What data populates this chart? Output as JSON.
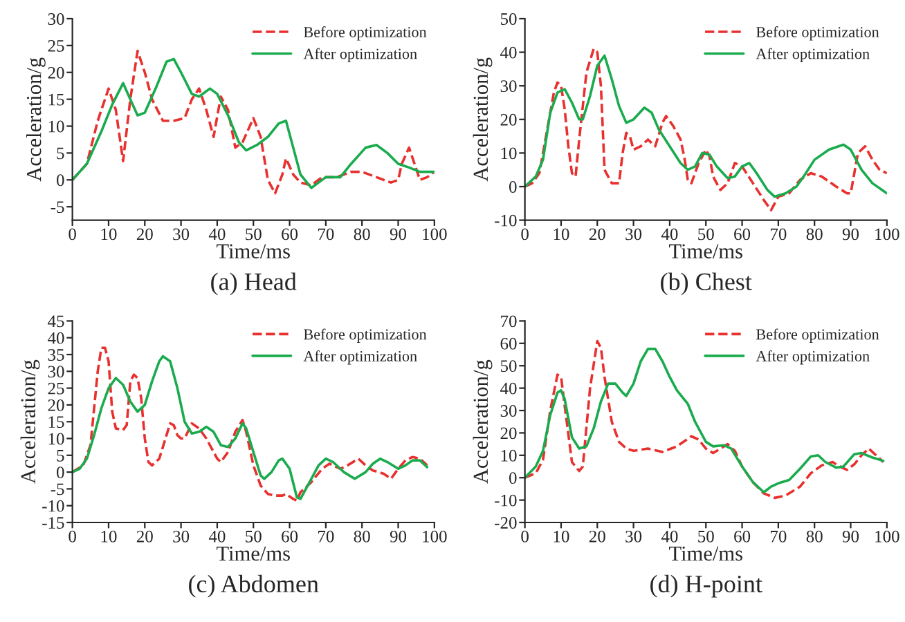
{
  "chart_data": [
    {
      "type": "line",
      "title": "(a) Head",
      "xlabel": "Time/ms",
      "ylabel": "Acceleration/g",
      "xlim": [
        0,
        100
      ],
      "ylim": [
        -7.5,
        30
      ],
      "xticks": [
        0,
        10,
        20,
        30,
        40,
        50,
        60,
        70,
        80,
        90,
        100
      ],
      "yticks": [
        -5,
        0,
        5,
        10,
        15,
        20,
        25,
        30
      ],
      "grid": false,
      "legend": "top right",
      "series": [
        {
          "name": "Before optimization",
          "color": "#e8312f",
          "line_style": "dashed",
          "x": [
            0,
            4,
            7,
            10,
            12,
            14,
            16,
            18,
            20,
            22,
            25,
            28,
            31,
            33,
            35,
            37,
            39,
            41,
            43,
            45,
            47,
            50,
            52,
            54,
            56,
            58,
            59,
            61,
            63,
            66,
            69,
            73,
            77,
            80,
            84,
            88,
            90,
            91,
            93,
            95,
            96,
            98,
            100
          ],
          "values": [
            0,
            3,
            11,
            17,
            13,
            3.5,
            15,
            24,
            20,
            15,
            11,
            11,
            11.5,
            15,
            17,
            13,
            8,
            15.5,
            13,
            6,
            7,
            11.5,
            8,
            0,
            -2.5,
            1,
            4,
            1,
            -0.5,
            -1,
            0.5,
            0.5,
            1.5,
            1.5,
            0.5,
            -0.5,
            0,
            3,
            6,
            2,
            0,
            0.5,
            1.5
          ]
        },
        {
          "name": "After optimization",
          "color": "#1aab4e",
          "line_style": "solid",
          "x": [
            0,
            4,
            8,
            11,
            14,
            16,
            18,
            20,
            23,
            26,
            28,
            30,
            33,
            35,
            38,
            40,
            43,
            46,
            48,
            51,
            54,
            57,
            59,
            61,
            63,
            66,
            68,
            70,
            74,
            77,
            81,
            84,
            87,
            90,
            93,
            96,
            100
          ],
          "values": [
            0,
            3,
            9,
            14,
            18,
            15,
            12,
            12.5,
            17,
            22,
            22.5,
            20,
            16,
            15.5,
            17,
            16,
            12,
            7,
            5.5,
            6.5,
            8,
            10.5,
            11,
            6,
            1,
            -1.5,
            -0.5,
            0.5,
            0.5,
            3,
            6,
            6.5,
            5,
            3,
            2.3,
            1.5,
            1.5
          ]
        }
      ]
    },
    {
      "type": "line",
      "title": "(b) Chest",
      "xlabel": "Time/ms",
      "ylabel": "Acceleration/g",
      "xlim": [
        0,
        100
      ],
      "ylim": [
        -10,
        50
      ],
      "xticks": [
        0,
        10,
        20,
        30,
        40,
        50,
        60,
        70,
        80,
        90,
        100
      ],
      "yticks": [
        -10,
        0,
        10,
        20,
        30,
        40,
        50
      ],
      "grid": false,
      "legend": "top right",
      "series": [
        {
          "name": "Before optimization",
          "color": "#e8312f",
          "line_style": "dashed",
          "x": [
            0,
            2,
            4,
            6,
            8,
            9,
            10,
            11,
            12,
            13,
            14,
            15,
            17,
            19,
            20,
            21,
            22,
            24,
            26,
            27,
            28,
            29,
            30,
            32,
            34,
            36,
            38,
            39,
            41,
            43,
            44,
            45,
            46,
            48,
            50,
            51,
            52,
            54,
            56,
            58,
            60,
            63,
            66,
            68,
            70,
            73,
            76,
            79,
            82,
            86,
            89,
            90,
            91,
            92,
            94,
            96,
            98,
            100
          ],
          "values": [
            0,
            1,
            4,
            16,
            28,
            31,
            30,
            23,
            12,
            4,
            3,
            14,
            34,
            41,
            40,
            30,
            5,
            1,
            1,
            10,
            16,
            15,
            11,
            12,
            14,
            12,
            19,
            21,
            18,
            14,
            9,
            2,
            1,
            7,
            11,
            9,
            3,
            -1,
            1,
            7,
            6,
            1,
            -4,
            -7,
            -3,
            -2,
            2,
            4,
            3,
            0,
            -2,
            -2,
            4,
            10,
            12,
            8,
            5,
            4
          ]
        },
        {
          "name": "After optimization",
          "color": "#1aab4e",
          "line_style": "solid",
          "x": [
            0,
            3,
            5,
            7,
            9,
            11,
            13,
            15,
            16,
            18,
            20,
            22,
            24,
            26,
            28,
            30,
            33,
            35,
            37,
            40,
            43,
            45,
            47,
            49,
            51,
            53,
            56,
            58,
            60,
            62,
            64,
            67,
            69,
            72,
            75,
            77,
            80,
            84,
            88,
            90,
            93,
            96,
            100
          ],
          "values": [
            0,
            3,
            8,
            22,
            28,
            29,
            25,
            20,
            20,
            27,
            36,
            39,
            32,
            24,
            19,
            20,
            23.5,
            22,
            17,
            12,
            7,
            5,
            6,
            10,
            9.5,
            6,
            2.5,
            3,
            6,
            7,
            4,
            -1,
            -3,
            -2,
            0,
            3,
            8,
            11,
            12.5,
            11,
            5,
            1,
            -2
          ]
        }
      ]
    },
    {
      "type": "line",
      "title": "(c) Abdomen",
      "xlabel": "Time/ms",
      "ylabel": "Acceleration/g",
      "xlim": [
        0,
        100
      ],
      "ylim": [
        -15,
        45
      ],
      "xticks": [
        0,
        10,
        20,
        30,
        40,
        50,
        60,
        70,
        80,
        90,
        100
      ],
      "yticks": [
        -15,
        -10,
        -5,
        0,
        5,
        10,
        15,
        20,
        25,
        30,
        35,
        40,
        45
      ],
      "grid": false,
      "legend": "top right",
      "series": [
        {
          "name": "Before optimization",
          "color": "#e8312f",
          "line_style": "dashed",
          "x": [
            0,
            3,
            5,
            7,
            8,
            9,
            10,
            11,
            12,
            14,
            15,
            16,
            17,
            18,
            19,
            20,
            21,
            22,
            24,
            26,
            27,
            28,
            29,
            30,
            31,
            33,
            35,
            37,
            40,
            41,
            43,
            45,
            47,
            48,
            50,
            52,
            54,
            56,
            58,
            59,
            61,
            62,
            63,
            66,
            69,
            71,
            74,
            76,
            79,
            81,
            83,
            86,
            88,
            90,
            92,
            94,
            96,
            98
          ],
          "values": [
            0,
            2,
            8,
            30,
            37,
            37,
            33,
            18,
            13,
            12.5,
            14,
            27,
            29,
            28,
            22,
            10,
            3,
            2,
            4,
            11,
            14.5,
            14,
            11,
            10,
            10,
            14.5,
            13,
            10,
            4,
            3,
            6,
            12,
            15.5,
            12,
            2,
            -4,
            -6.5,
            -7,
            -7,
            -6.5,
            -8,
            -8.5,
            -6,
            -3,
            1,
            2.5,
            1,
            2,
            4,
            2,
            0.5,
            -0.5,
            -2,
            1,
            3.5,
            4.5,
            4,
            2
          ]
        },
        {
          "name": "After optimization",
          "color": "#1aab4e",
          "line_style": "solid",
          "x": [
            0,
            2,
            4,
            6,
            8,
            10,
            12,
            14,
            16,
            18,
            20,
            22,
            24,
            25,
            27,
            29,
            31,
            33,
            35,
            37,
            39,
            41,
            43,
            45,
            47,
            48,
            50,
            52,
            53,
            55,
            57,
            58,
            60,
            62,
            63,
            65,
            68,
            70,
            72,
            75,
            78,
            81,
            83,
            85,
            87,
            90,
            92,
            94,
            96,
            98
          ],
          "values": [
            0,
            1,
            4,
            11,
            19,
            25,
            28,
            26,
            21,
            18,
            20,
            27,
            33,
            34.5,
            33,
            25,
            15,
            11.5,
            12,
            13.5,
            12,
            8,
            7.5,
            10,
            14.5,
            13,
            6,
            -1,
            -2,
            0,
            3.5,
            4,
            1,
            -7.5,
            -8,
            -4,
            2,
            4,
            3,
            0,
            -2,
            0,
            2.5,
            4,
            3,
            1,
            2,
            3.5,
            3.5,
            1.5
          ]
        }
      ]
    },
    {
      "type": "line",
      "title": "(d) H-point",
      "xlabel": "Time/ms",
      "ylabel": "Acceleration/g",
      "xlim": [
        0,
        100
      ],
      "ylim": [
        -20,
        70
      ],
      "xticks": [
        0,
        10,
        20,
        30,
        40,
        50,
        60,
        70,
        80,
        90,
        100
      ],
      "yticks": [
        -20,
        -10,
        0,
        10,
        20,
        30,
        40,
        50,
        60,
        70
      ],
      "grid": false,
      "legend": "top right",
      "series": [
        {
          "name": "Before optimization",
          "color": "#e8312f",
          "line_style": "dashed",
          "x": [
            0,
            3,
            5,
            7,
            9,
            10,
            11,
            13,
            15,
            16,
            18,
            20,
            21,
            22,
            24,
            26,
            28,
            30,
            34,
            38,
            42,
            46,
            48,
            50,
            52,
            54,
            56,
            58,
            60,
            63,
            66,
            69,
            72,
            76,
            79,
            82,
            85,
            87,
            89,
            91,
            93,
            95,
            97,
            99
          ],
          "values": [
            0,
            2,
            8,
            30,
            46,
            45,
            32,
            7,
            3,
            5,
            40,
            61,
            58,
            45,
            25,
            16,
            13,
            12,
            13,
            11.5,
            14,
            18.5,
            17,
            13,
            11,
            13,
            15,
            12,
            5,
            -2,
            -7,
            -9,
            -8,
            -4,
            2,
            5.5,
            7,
            5,
            3.5,
            6,
            10,
            13,
            10,
            7
          ]
        },
        {
          "name": "After optimization",
          "color": "#1aab4e",
          "line_style": "solid",
          "x": [
            0,
            3,
            5,
            7,
            9,
            10,
            11,
            13,
            15,
            17,
            19,
            21,
            23,
            25,
            27,
            28,
            30,
            32,
            34,
            36,
            38,
            40,
            42,
            45,
            47,
            50,
            52,
            55,
            57,
            60,
            63,
            66,
            68,
            70,
            73,
            76,
            79,
            81,
            83,
            86,
            88,
            91,
            93,
            96,
            99
          ],
          "values": [
            0,
            5,
            12,
            28,
            38,
            39,
            35,
            18,
            13,
            14,
            22,
            34,
            42,
            42,
            38,
            36.5,
            42,
            52,
            57.5,
            57.5,
            52,
            45,
            39,
            33,
            25,
            16,
            14,
            14.5,
            13,
            5,
            -2,
            -6.5,
            -4,
            -2.5,
            -1,
            4,
            9.5,
            10,
            7,
            4.5,
            5,
            10.5,
            11,
            9,
            7.5
          ]
        }
      ]
    }
  ]
}
